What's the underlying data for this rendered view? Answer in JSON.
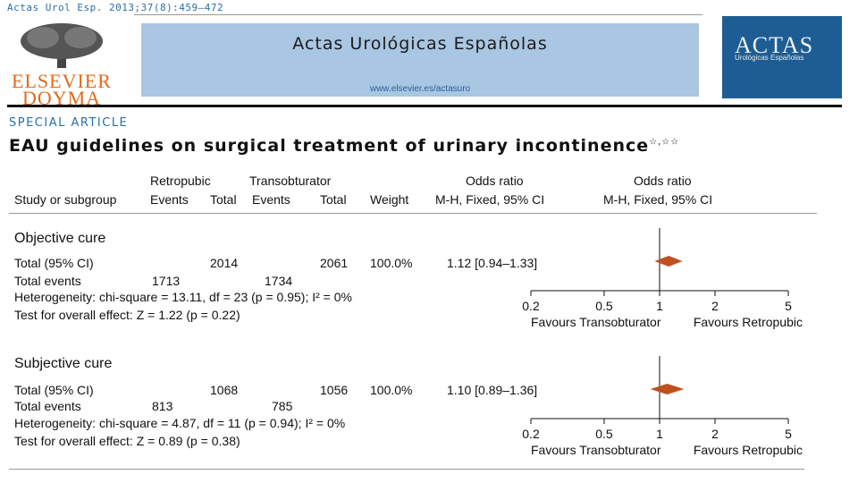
{
  "journal": {
    "citation": "Actas Urol Esp. 2013;37(8):459–472",
    "title": "Actas Urológicas Españolas",
    "url": "www.elsevier.es/actasuro",
    "publisher_line1": "ELSEVIER",
    "publisher_line2": "DOYMA",
    "cover_title": "ACTAS",
    "cover_subtitle": "Urológicas Españolas"
  },
  "article": {
    "section": "SPECIAL ARTICLE",
    "title": "EAU guidelines on surgical treatment of urinary incontinence",
    "title_marks": "☆,☆☆"
  },
  "table": {
    "group_headers": {
      "retropubic": "Retropubic",
      "transobturator": "Transobturator",
      "or_left": "Odds ratio",
      "or_right": "Odds ratio"
    },
    "columns": {
      "study": "Study or subgroup",
      "events1": "Events",
      "total1": "Total",
      "events2": "Events",
      "total2": "Total",
      "weight": "Weight",
      "method_left": "M-H, Fixed, 95% CI",
      "method_right": "M-H, Fixed, 95% CI"
    },
    "subgroups": [
      {
        "name": "Objective cure",
        "total_label": "Total (95% CI)",
        "total1": "2014",
        "total2": "2061",
        "weight": "100.0%",
        "or_text": "1.12 [0.94–1.33]",
        "events_label": "Total events",
        "events1": "1713",
        "events2": "1734",
        "heterogeneity": "Heterogeneity: chi-square = 13.11, df = 23 (p = 0.95); I² = 0%",
        "overall": "Test for overall effect: Z = 1.22 (p = 0.22)"
      },
      {
        "name": "Subjective cure",
        "total_label": "Total (95% CI)",
        "total1": "1068",
        "total2": "1056",
        "weight": "100.0%",
        "or_text": "1.10 [0.89–1.36]",
        "events_label": "Total events",
        "events1": "813",
        "events2": "785",
        "heterogeneity": "Heterogeneity: chi-square = 4.87, df = 11 (p = 0.94); I² = 0%",
        "overall": "Test for overall effect: Z = 0.89 (p = 0.38)"
      }
    ],
    "axis_labels": {
      "left": "Favours  Transobturator",
      "right": "Favours  Retropubic"
    }
  },
  "chart_data": [
    {
      "type": "scatter",
      "subgroup": "Objective cure",
      "x": [
        1.12
      ],
      "ci": [
        [
          0.94,
          1.33
        ]
      ],
      "xscale": "log",
      "xlim": [
        0.2,
        5
      ],
      "xticks": [
        "0.2",
        "0.5",
        "1",
        "2",
        "5"
      ],
      "color": "#c0501e"
    },
    {
      "type": "scatter",
      "subgroup": "Subjective cure",
      "x": [
        1.1
      ],
      "ci": [
        [
          0.89,
          1.36
        ]
      ],
      "xscale": "log",
      "xlim": [
        0.2,
        5
      ],
      "xticks": [
        "0.2",
        "0.5",
        "1",
        "2",
        "5"
      ],
      "color": "#c0501e"
    }
  ]
}
